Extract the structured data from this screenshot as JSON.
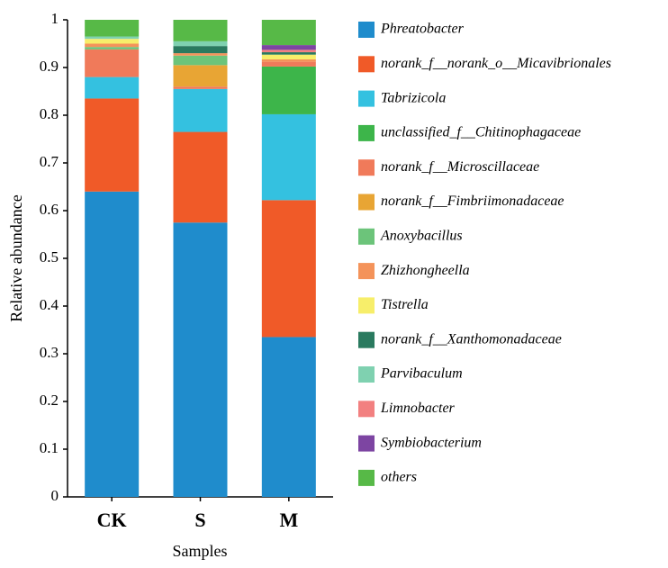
{
  "chart_data": {
    "type": "stacked_bar",
    "categories": [
      "CK",
      "S",
      "M"
    ],
    "x_label": "Samples",
    "y_label": "Relative abundance",
    "ylim": [
      0,
      1
    ],
    "yticks": [
      0,
      0.1,
      0.2,
      0.3,
      0.4,
      0.5,
      0.6,
      0.7,
      0.8,
      0.9,
      1
    ],
    "series": [
      {
        "name": "Phreatobacter",
        "color": "#1f8ccc",
        "values": [
          0.64,
          0.575,
          0.335
        ]
      },
      {
        "name": "norank_f__norank_o__Micavibrionales",
        "color": "#f05a28",
        "values": [
          0.195,
          0.19,
          0.287
        ]
      },
      {
        "name": "Tabrizicola",
        "color": "#34c1e0",
        "values": [
          0.045,
          0.09,
          0.18
        ]
      },
      {
        "name": "unclassified_f__Chitinophagaceae",
        "color": "#3db54a",
        "values": [
          0,
          0,
          0.1
        ]
      },
      {
        "name": "norank_f__Microscillaceae",
        "color": "#f07a5a",
        "values": [
          0.058,
          0.005,
          0.01
        ]
      },
      {
        "name": "norank_f__Fimbriimonadaceae",
        "color": "#e8a534",
        "values": [
          0,
          0.045,
          0
        ]
      },
      {
        "name": "Anoxybacillus",
        "color": "#6cc47a",
        "values": [
          0.005,
          0.02,
          0
        ]
      },
      {
        "name": "Zhizhongheella",
        "color": "#f4935a",
        "values": [
          0.007,
          0.005,
          0.005
        ]
      },
      {
        "name": "Tistrella",
        "color": "#f7ee6a",
        "values": [
          0.01,
          0,
          0.01
        ]
      },
      {
        "name": "norank_f__Xanthomonadaceae",
        "color": "#2a7a5f",
        "values": [
          0,
          0.015,
          0.005
        ]
      },
      {
        "name": "Parvibaculum",
        "color": "#7fd1b0",
        "values": [
          0.005,
          0.01,
          0
        ]
      },
      {
        "name": "Limnobacter",
        "color": "#f28080",
        "values": [
          0,
          0,
          0.005
        ]
      },
      {
        "name": "Symbiobacterium",
        "color": "#7d45a2",
        "values": [
          0,
          0,
          0.01
        ]
      },
      {
        "name": "others",
        "color": "#57b947",
        "values": [
          0.035,
          0.045,
          0.053
        ]
      }
    ]
  }
}
